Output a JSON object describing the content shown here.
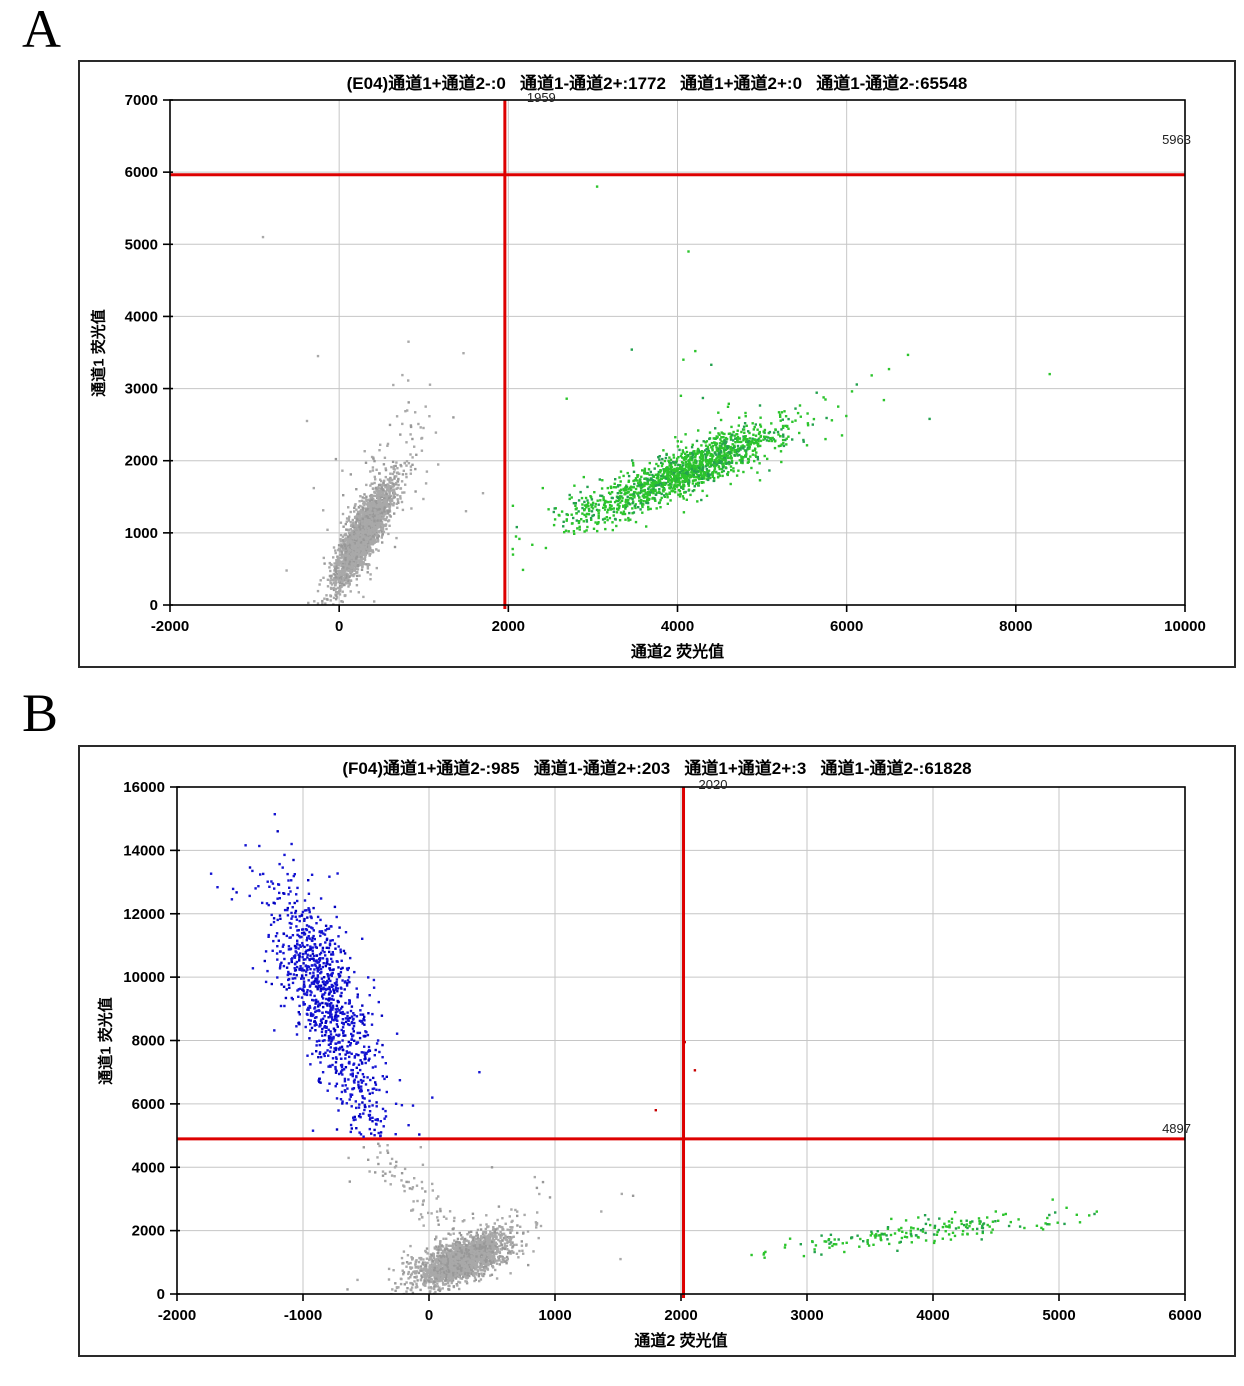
{
  "page": {
    "panel_labels": [
      "A",
      "B"
    ]
  },
  "chart_data": [
    {
      "type": "scatter",
      "panel": "A",
      "well": "E04",
      "title": "(E04)通道1+通道2-:0   通道1-通道2+:1772   通道1+通道2+:0   通道1-通道2-:65548",
      "xlabel": "通道2 荧光值",
      "ylabel": "通道1 荧光值",
      "xlim": [
        -2000,
        10000
      ],
      "xstep": 2000,
      "ylim": [
        0,
        7000
      ],
      "ystep": 1000,
      "grid": true,
      "grid_color": "#c6c6c6",
      "quadrant_counts": {
        "ch1pos_ch2neg": 0,
        "ch1neg_ch2pos": 1772,
        "ch1pos_ch2pos": 0,
        "ch1neg_ch2neg": 65548
      },
      "threshold": {
        "color": "#dd0000",
        "vline_x": 1959,
        "vline_label": "1959",
        "hline_y": 5963,
        "hline_label": "5963"
      },
      "series": [
        {
          "name": "double-negative-droplets",
          "colors": [
            "#a9a9a9",
            "#989898"
          ],
          "seed": 11,
          "clusters": [
            {
              "kind": "gauss",
              "n": 2400,
              "center": [
                290,
                980
              ],
              "axis": [
                150,
                340
              ],
              "width": [
                75,
                -40
              ],
              "xmax": 1900
            },
            {
              "kind": "gauss",
              "n": 170,
              "center": [
                330,
                1150
              ],
              "axis": [
                330,
                700
              ],
              "width": [
                170,
                -80
              ],
              "xmax": 1900,
              "ymax": 3900
            },
            {
              "kind": "trail",
              "n": 26,
              "from": [
                250,
                1600
              ],
              "to": [
                1150,
                3150
              ],
              "jitter": [
                170,
                240
              ]
            },
            {
              "kind": "points",
              "pts": [
                [
                  -900,
                  5100
                ],
                [
                  -250,
                  3450
                ],
                [
                  820,
                  3650
                ],
                [
                  640,
                  3050
                ],
                [
                  1350,
                  2600
                ],
                [
                  1500,
                  1300
                ],
                [
                  -380,
                  2550
                ],
                [
                  -300,
                  1620
                ],
                [
                  1700,
                  1550
                ]
              ]
            }
          ]
        },
        {
          "name": "channel2-positive-droplets",
          "colors": [
            "#2cc42c",
            "#23a14e"
          ],
          "seed": 21,
          "clusters": [
            {
              "kind": "gauss",
              "n": 1300,
              "center": [
                4150,
                1880
              ],
              "axis": [
                560,
                300
              ],
              "width": [
                60,
                -120
              ],
              "xmin": 2050,
              "ymax": 5900
            },
            {
              "kind": "gauss",
              "n": 170,
              "center": [
                4100,
                1900
              ],
              "axis": [
                900,
                480
              ],
              "width": [
                130,
                -260
              ],
              "xmin": 2050,
              "ymax": 5900
            },
            {
              "kind": "trail",
              "n": 80,
              "from": [
                2620,
                1150
              ],
              "to": [
                3520,
                1620
              ],
              "jitter": [
                150,
                120
              ]
            },
            {
              "kind": "points",
              "pts": [
                [
                  3050,
                  5800
                ],
                [
                  4130,
                  4900
                ],
                [
                  3460,
                  3540
                ],
                [
                  4210,
                  3520
                ],
                [
                  4070,
                  3400
                ],
                [
                  4400,
                  3330
                ],
                [
                  2690,
                  2860
                ],
                [
                  4040,
                  2900
                ],
                [
                  4300,
                  2870
                ],
                [
                  6440,
                  2840
                ],
                [
                  6980,
                  2580
                ],
                [
                  8400,
                  3200
                ],
                [
                  5900,
                  2750
                ],
                [
                  6500,
                  3270
                ],
                [
                  2100,
                  1080
                ],
                [
                  5600,
                  2500
                ],
                [
                  5750,
                  2300
                ]
              ]
            }
          ]
        }
      ]
    },
    {
      "type": "scatter",
      "panel": "B",
      "well": "F04",
      "title": "(F04)通道1+通道2-:985   通道1-通道2+:203   通道1+通道2+:3   通道1-通道2-:61828",
      "xlabel": "通道2 荧光值",
      "ylabel": "通道1 荧光值",
      "xlim": [
        -2000,
        6000
      ],
      "xstep": 1000,
      "ylim": [
        0,
        16000
      ],
      "ystep": 2000,
      "grid": true,
      "grid_color": "#c6c6c6",
      "quadrant_counts": {
        "ch1pos_ch2neg": 985,
        "ch1neg_ch2pos": 203,
        "ch1pos_ch2pos": 3,
        "ch1neg_ch2neg": 61828
      },
      "threshold": {
        "color": "#dd0000",
        "vline_x": 2020,
        "vline_label": "2020",
        "hline_y": 4897,
        "hline_label": "4897"
      },
      "series": [
        {
          "name": "channel1-positive-droplets",
          "colors": [
            "#1414d2",
            "#0000be"
          ],
          "seed": 31,
          "clusters": [
            {
              "kind": "gauss",
              "n": 850,
              "center": [
                -830,
                9400
              ],
              "axis": [
                165,
                -1700
              ],
              "width": [
                115,
                300
              ],
              "ymin": 4950
            },
            {
              "kind": "gauss",
              "n": 120,
              "center": [
                -850,
                9800
              ],
              "axis": [
                290,
                -2700
              ],
              "width": [
                190,
                600
              ],
              "ymin": 4950,
              "ymax": 13400
            },
            {
              "kind": "trail",
              "n": 55,
              "from": [
                -580,
                6600
              ],
              "to": [
                -430,
                5100
              ],
              "jitter": [
                70,
                350
              ],
              "ymin": 4950
            },
            {
              "kind": "points",
              "pts": [
                [
                  400,
                  7000
                ],
                [
                  -452,
                  8500
                ]
              ]
            }
          ]
        },
        {
          "name": "double-negative-droplets",
          "colors": [
            "#a9a9a9",
            "#989898"
          ],
          "seed": 41,
          "clusters": [
            {
              "kind": "trail",
              "n": 80,
              "from": [
                -460,
                4700
              ],
              "to": [
                150,
                1950
              ],
              "jitter": [
                85,
                300
              ],
              "ymax": 4800
            },
            {
              "kind": "gauss",
              "n": 2000,
              "center": [
                265,
                1080
              ],
              "axis": [
                160,
                360
              ],
              "width": [
                80,
                -160
              ]
            },
            {
              "kind": "gauss",
              "n": 170,
              "center": [
                280,
                1250
              ],
              "axis": [
                320,
                760
              ],
              "width": [
                150,
                -250
              ],
              "ymax": 4400
            },
            {
              "kind": "points",
              "pts": [
                [
                  1530,
                  3160
                ],
                [
                  1520,
                  1100
                ],
                [
                  840,
                  3690
                ],
                [
                  905,
                  3530
                ],
                [
                  500,
                  4000
                ],
                [
                  -270,
                  4000
                ],
                [
                  960,
                  3050
                ],
                [
                  1620,
                  3100
                ],
                [
                  700,
                  2600
                ]
              ]
            }
          ]
        },
        {
          "name": "channel2-positive-droplets",
          "colors": [
            "#2cc42c",
            "#23a14e"
          ],
          "seed": 51,
          "clusters": [
            {
              "kind": "trail",
              "n": 190,
              "from": [
                2580,
                1320
              ],
              "to": [
                5200,
                2560
              ],
              "jitter": [
                170,
                170
              ],
              "bias": "mid",
              "xmin": 2100,
              "ymax": 4800
            },
            {
              "kind": "points",
              "pts": [
                [
                  5240,
                  2480
                ],
                [
                  5060,
                  2720
                ],
                [
                  4950,
                  2980
                ],
                [
                  2560,
                  1230
                ],
                [
                  5300,
                  2600
                ]
              ]
            }
          ]
        },
        {
          "name": "double-positive-droplets",
          "colors": [
            "#c80000",
            "#c80000"
          ],
          "seed": 61,
          "clusters": [
            {
              "kind": "points",
              "pts": [
                [
                  2030,
                  7950
                ],
                [
                  2110,
                  7060
                ],
                [
                  1800,
                  5800
                ]
              ]
            }
          ]
        }
      ]
    }
  ]
}
